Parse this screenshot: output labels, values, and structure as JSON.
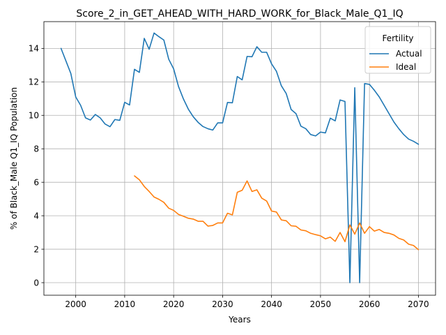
{
  "chart_data": {
    "type": "line",
    "title": "Score_2_in_GET_AHEAD_WITH_HARD_WORK_for_Black_Male_Q1_IQ",
    "xlabel": "Years",
    "ylabel": "% of Black_Male Q1_IQ Population",
    "xlim": [
      1993.5,
      2073.5
    ],
    "ylim": [
      -0.75,
      15.6
    ],
    "xticks": [
      2000,
      2010,
      2020,
      2030,
      2040,
      2050,
      2060,
      2070
    ],
    "yticks": [
      0,
      2,
      4,
      6,
      8,
      10,
      12,
      14
    ],
    "grid": true,
    "legend": {
      "title": "Fertility",
      "placement": "top-right"
    },
    "series": [
      {
        "name": "Actual",
        "color": "#1f77b4",
        "x": [
          1997,
          1998,
          1999,
          2000,
          2001,
          2002,
          2003,
          2004,
          2005,
          2006,
          2007,
          2008,
          2009,
          2010,
          2011,
          2012,
          2013,
          2014,
          2015,
          2016,
          2017,
          2018,
          2019,
          2020,
          2021,
          2022,
          2023,
          2024,
          2025,
          2026,
          2027,
          2028,
          2029,
          2030,
          2031,
          2032,
          2033,
          2034,
          2035,
          2036,
          2037,
          2038,
          2039,
          2040,
          2041,
          2042,
          2043,
          2044,
          2045,
          2046,
          2047,
          2048,
          2049,
          2050,
          2051,
          2052,
          2053,
          2054,
          2055,
          2056,
          2057,
          2058,
          2059,
          2060,
          2061,
          2062,
          2063,
          2064,
          2065,
          2066,
          2067,
          2068,
          2069,
          2070
        ],
        "values": [
          14.0,
          13.25,
          12.5,
          11.1,
          10.6,
          9.85,
          9.72,
          10.05,
          9.85,
          9.48,
          9.32,
          9.75,
          9.7,
          10.78,
          10.62,
          12.75,
          12.57,
          14.6,
          13.95,
          14.92,
          14.7,
          14.5,
          13.35,
          12.78,
          11.72,
          10.98,
          10.37,
          9.92,
          9.58,
          9.33,
          9.2,
          9.12,
          9.55,
          9.55,
          10.77,
          10.75,
          12.32,
          12.12,
          13.52,
          13.5,
          14.1,
          13.77,
          13.77,
          13.08,
          12.63,
          11.77,
          11.3,
          10.35,
          10.1,
          9.35,
          9.2,
          8.85,
          8.77,
          9.0,
          8.95,
          9.83,
          9.67,
          10.92,
          10.83,
          0.0,
          11.65,
          0.0,
          11.9,
          11.85,
          11.5,
          11.1,
          10.6,
          10.1,
          9.6,
          9.2,
          8.85,
          8.58,
          8.45,
          8.27
        ]
      },
      {
        "name": "Ideal",
        "color": "#ff7f0e",
        "x": [
          2012,
          2013,
          2014,
          2015,
          2016,
          2017,
          2018,
          2019,
          2020,
          2021,
          2022,
          2023,
          2024,
          2025,
          2026,
          2027,
          2028,
          2029,
          2030,
          2031,
          2032,
          2033,
          2034,
          2035,
          2036,
          2037,
          2038,
          2039,
          2040,
          2041,
          2042,
          2043,
          2044,
          2045,
          2046,
          2047,
          2048,
          2049,
          2050,
          2051,
          2052,
          2053,
          2054,
          2055,
          2056,
          2057,
          2058,
          2059,
          2060,
          2061,
          2062,
          2063,
          2064,
          2065,
          2066,
          2067,
          2068,
          2069,
          2070
        ],
        "values": [
          6.38,
          6.15,
          5.75,
          5.45,
          5.12,
          4.98,
          4.8,
          4.45,
          4.32,
          4.08,
          3.97,
          3.85,
          3.8,
          3.67,
          3.67,
          3.38,
          3.42,
          3.57,
          3.57,
          4.15,
          4.05,
          5.4,
          5.52,
          6.08,
          5.45,
          5.55,
          5.05,
          4.88,
          4.28,
          4.22,
          3.75,
          3.7,
          3.4,
          3.37,
          3.15,
          3.1,
          2.95,
          2.87,
          2.8,
          2.62,
          2.72,
          2.47,
          3.0,
          2.45,
          3.45,
          2.9,
          3.57,
          2.95,
          3.35,
          3.08,
          3.18,
          3.0,
          2.95,
          2.85,
          2.65,
          2.55,
          2.3,
          2.22,
          1.97
        ]
      }
    ]
  }
}
